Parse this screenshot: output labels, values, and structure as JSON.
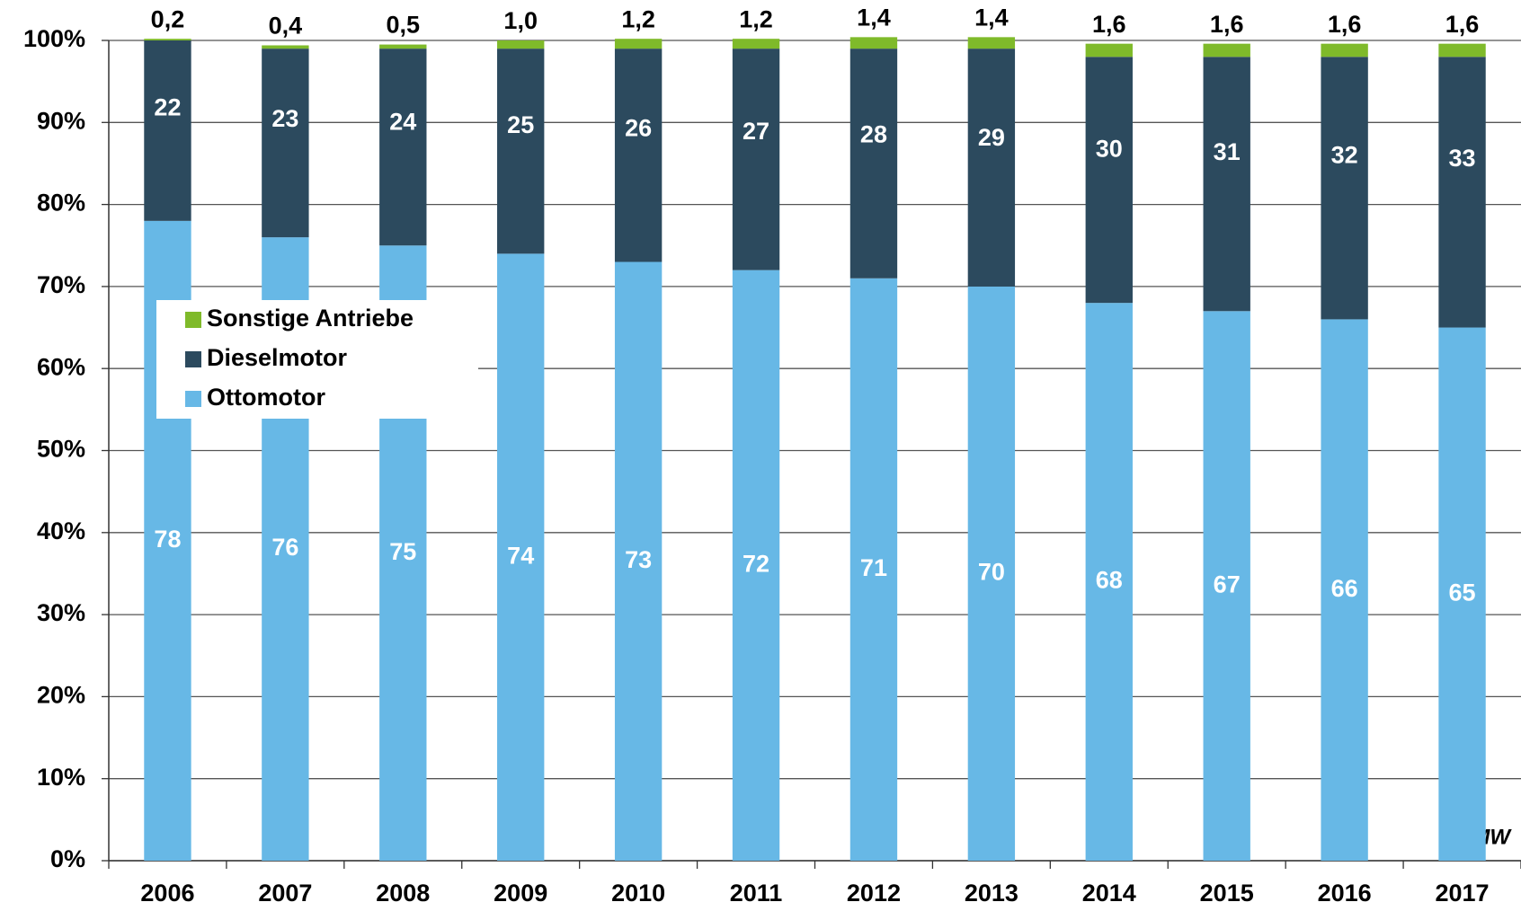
{
  "chart_data": {
    "type": "stacked_bar",
    "categories": [
      "2006",
      "2007",
      "2008",
      "2009",
      "2010",
      "2011",
      "2012",
      "2013",
      "2014",
      "2015",
      "2016",
      "2017"
    ],
    "series": [
      {
        "name": "Ottomotor",
        "color": "#67b8e6",
        "values": [
          78,
          76,
          75,
          74,
          73,
          72,
          71,
          70,
          68,
          67,
          66,
          65
        ]
      },
      {
        "name": "Dieselmotor",
        "color": "#2c4a5e",
        "values": [
          22,
          23,
          24,
          25,
          26,
          27,
          28,
          29,
          30,
          31,
          32,
          33
        ]
      },
      {
        "name": "Sonstige Antriebe",
        "color": "#7fba2a",
        "values": [
          0.2,
          0.4,
          0.5,
          1.0,
          1.2,
          1.2,
          1.4,
          1.4,
          1.6,
          1.6,
          1.6,
          1.6
        ],
        "value_labels": [
          "0,2",
          "0,4",
          "0,5",
          "1,0",
          "1,2",
          "1,2",
          "1,4",
          "1,4",
          "1,6",
          "1,6",
          "1,6",
          "1,6"
        ]
      }
    ],
    "ylim": [
      0,
      100
    ],
    "yticks": [
      {
        "value": 0,
        "label": "0%"
      },
      {
        "value": 10,
        "label": "10%"
      },
      {
        "value": 20,
        "label": "20%"
      },
      {
        "value": 30,
        "label": "30%"
      },
      {
        "value": 40,
        "label": "40%"
      },
      {
        "value": 50,
        "label": "50%"
      },
      {
        "value": 60,
        "label": "60%"
      },
      {
        "value": 70,
        "label": "70%"
      },
      {
        "value": 80,
        "label": "80%"
      },
      {
        "value": 90,
        "label": "90%"
      },
      {
        "value": 100,
        "label": "100%"
      }
    ],
    "grid": true,
    "legend": "upper left",
    "annotation": "©MW"
  }
}
